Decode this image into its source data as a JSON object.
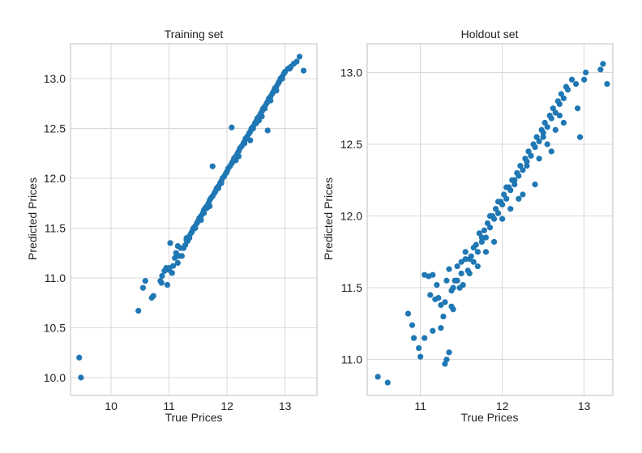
{
  "chart_data": [
    {
      "type": "scatter",
      "title": "Training set",
      "xlabel": "True Prices",
      "ylabel": "Predicted Prices",
      "xlim": [
        9.3,
        13.55
      ],
      "ylim": [
        9.82,
        13.35
      ],
      "xticks": [
        10,
        11,
        12,
        13
      ],
      "yticks": [
        10.0,
        10.5,
        11.0,
        11.5,
        12.0,
        12.5,
        13.0
      ],
      "xtick_labels": [
        "10",
        "11",
        "12",
        "13"
      ],
      "ytick_labels": [
        "10.0",
        "10.5",
        "11.0",
        "11.5",
        "12.0",
        "12.5",
        "13.0"
      ],
      "grid": true,
      "color": "#1f77b4",
      "series": [
        {
          "x": [
            9.45,
            9.48,
            10.47,
            10.55,
            10.59,
            10.7,
            10.73,
            10.85,
            10.87,
            10.88,
            10.92,
            10.95,
            10.97,
            11.0,
            11.02,
            11.05,
            11.07,
            11.1,
            11.12,
            11.15,
            11.18,
            11.2,
            11.22,
            11.25,
            11.28,
            11.3,
            11.32,
            11.35,
            11.38,
            11.4,
            11.42,
            11.45,
            11.48,
            11.5,
            11.52,
            11.55,
            11.58,
            11.6,
            11.62,
            11.65,
            11.68,
            11.7,
            11.72,
            11.75,
            11.78,
            11.8,
            11.82,
            11.85,
            11.88,
            11.9,
            11.92,
            11.95,
            11.98,
            12.0,
            12.02,
            12.05,
            12.08,
            12.1,
            12.12,
            12.15,
            12.18,
            12.2,
            12.22,
            12.25,
            12.28,
            12.3,
            12.32,
            12.35,
            12.38,
            12.4,
            12.42,
            12.45,
            12.48,
            12.5,
            12.52,
            12.55,
            12.58,
            12.6,
            12.62,
            12.65,
            12.68,
            12.7,
            12.72,
            12.75,
            12.78,
            12.8,
            12.82,
            12.85,
            12.88,
            12.9,
            12.92,
            12.95,
            12.98,
            13.0,
            13.05,
            13.1,
            13.15,
            13.2,
            13.25,
            13.32,
            11.75,
            12.08,
            12.7,
            11.3,
            11.15,
            11.0,
            11.6,
            11.9,
            12.2,
            12.4,
            12.6,
            12.85,
            11.45,
            11.35,
            11.05,
            11.25,
            11.7,
            12.45,
            12.15,
            12.55,
            12.65,
            11.85,
            12.95,
            13.08,
            11.55,
            11.65,
            12.3,
            12.5,
            12.75
          ],
          "y": [
            10.2,
            10.0,
            10.67,
            10.9,
            10.97,
            10.8,
            10.82,
            10.97,
            10.95,
            11.02,
            11.07,
            11.1,
            10.93,
            11.08,
            11.35,
            11.05,
            11.12,
            11.2,
            11.25,
            11.15,
            11.22,
            11.3,
            11.22,
            11.3,
            11.33,
            11.38,
            11.37,
            11.42,
            11.45,
            11.47,
            11.5,
            11.52,
            11.55,
            11.57,
            11.6,
            11.62,
            11.65,
            11.68,
            11.7,
            11.72,
            11.75,
            11.78,
            11.8,
            11.82,
            11.85,
            11.87,
            11.9,
            11.92,
            11.95,
            11.97,
            12.0,
            12.02,
            12.05,
            12.07,
            12.1,
            12.12,
            12.15,
            12.17,
            12.2,
            12.22,
            12.25,
            12.27,
            12.3,
            12.32,
            12.35,
            12.37,
            12.4,
            12.42,
            12.45,
            12.47,
            12.5,
            12.52,
            12.55,
            12.57,
            12.6,
            12.62,
            12.65,
            12.67,
            12.7,
            12.72,
            12.75,
            12.77,
            12.8,
            12.82,
            12.85,
            12.87,
            12.9,
            12.92,
            12.95,
            12.97,
            13.0,
            13.02,
            13.05,
            13.07,
            13.1,
            13.12,
            13.15,
            13.17,
            13.22,
            13.08,
            12.12,
            12.51,
            12.48,
            11.4,
            11.32,
            11.1,
            11.65,
            11.95,
            12.22,
            12.38,
            12.62,
            12.88,
            11.5,
            11.4,
            11.05,
            11.3,
            11.72,
            12.5,
            12.18,
            12.58,
            12.7,
            11.9,
            13.0,
            13.1,
            11.58,
            11.7,
            12.35,
            12.55,
            12.78
          ]
        }
      ]
    },
    {
      "type": "scatter",
      "title": "Holdout set",
      "xlabel": "True Prices",
      "ylabel": "Predicted Prices",
      "xlim": [
        10.35,
        13.35
      ],
      "ylim": [
        10.75,
        13.2
      ],
      "xticks": [
        11,
        12,
        13
      ],
      "yticks": [
        11.0,
        11.5,
        12.0,
        12.5,
        13.0
      ],
      "xtick_labels": [
        "11",
        "12",
        "13"
      ],
      "ytick_labels": [
        "11.0",
        "11.5",
        "12.0",
        "12.5",
        "13.0"
      ],
      "grid": true,
      "color": "#1f77b4",
      "series": [
        {
          "x": [
            10.48,
            10.6,
            10.85,
            10.9,
            10.92,
            10.98,
            11.05,
            11.1,
            11.15,
            11.18,
            11.2,
            11.25,
            11.28,
            11.3,
            11.32,
            11.35,
            11.38,
            11.4,
            11.42,
            11.45,
            11.48,
            11.5,
            11.52,
            11.55,
            11.58,
            11.6,
            11.62,
            11.65,
            11.68,
            11.7,
            11.72,
            11.75,
            11.78,
            11.8,
            11.82,
            11.85,
            11.88,
            11.9,
            11.92,
            11.95,
            11.98,
            12.0,
            12.02,
            12.05,
            12.08,
            12.1,
            12.12,
            12.15,
            12.18,
            12.2,
            12.22,
            12.25,
            12.28,
            12.3,
            12.32,
            12.35,
            12.38,
            12.4,
            12.42,
            12.45,
            12.48,
            12.5,
            12.52,
            12.55,
            12.58,
            12.6,
            12.62,
            12.65,
            12.68,
            12.7,
            12.72,
            12.75,
            12.78,
            12.8,
            12.85,
            12.9,
            12.92,
            12.95,
            13.0,
            13.02,
            13.2,
            13.23,
            13.28,
            11.0,
            11.05,
            11.15,
            11.3,
            11.32,
            11.35,
            11.38,
            11.22,
            11.25,
            11.12,
            11.6,
            11.55,
            11.65,
            11.75,
            11.85,
            11.95,
            12.05,
            12.15,
            12.3,
            12.45,
            12.55,
            12.65,
            11.7,
            11.8,
            11.9,
            12.0,
            12.1,
            12.2,
            12.4,
            12.6,
            12.75,
            12.25,
            12.35,
            11.45,
            11.5,
            11.4,
            12.5,
            12.7
          ],
          "y": [
            10.88,
            10.84,
            11.32,
            11.24,
            11.15,
            11.08,
            11.59,
            11.58,
            11.59,
            11.42,
            11.52,
            11.22,
            11.3,
            11.4,
            11.55,
            11.63,
            11.48,
            11.35,
            11.55,
            11.65,
            11.5,
            11.6,
            11.52,
            11.75,
            11.62,
            11.7,
            11.72,
            11.68,
            11.8,
            11.75,
            11.88,
            11.82,
            11.9,
            11.85,
            11.95,
            11.92,
            12.0,
            11.98,
            12.05,
            12.02,
            12.1,
            12.08,
            12.15,
            12.12,
            12.2,
            12.18,
            12.25,
            12.22,
            12.3,
            12.28,
            12.35,
            12.32,
            12.4,
            12.38,
            12.45,
            12.42,
            12.5,
            12.48,
            12.55,
            12.52,
            12.6,
            12.58,
            12.65,
            12.62,
            12.7,
            12.68,
            12.75,
            12.72,
            12.8,
            12.78,
            12.85,
            12.82,
            12.9,
            12.88,
            12.95,
            12.92,
            12.75,
            12.55,
            12.95,
            13.0,
            13.02,
            13.06,
            12.92,
            11.02,
            11.15,
            11.2,
            10.97,
            11.0,
            11.05,
            11.37,
            11.43,
            11.38,
            11.45,
            11.6,
            11.7,
            11.78,
            11.85,
            12.0,
            12.1,
            12.2,
            12.25,
            12.35,
            12.4,
            12.5,
            12.6,
            11.65,
            11.75,
            11.82,
            11.98,
            12.05,
            12.12,
            12.22,
            12.45,
            12.65,
            12.15,
            12.42,
            11.55,
            11.68,
            11.5,
            12.55,
            12.7
          ]
        }
      ]
    }
  ]
}
